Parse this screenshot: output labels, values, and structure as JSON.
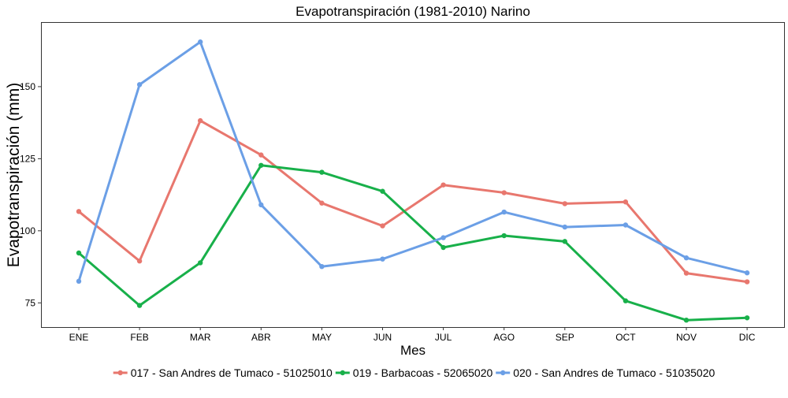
{
  "chart_data": {
    "type": "line",
    "title": "Evapotranspiración (1981-2010)  Narino",
    "xlabel": "Mes",
    "ylabel": "Evapotranspiración  (mm)",
    "categories": [
      "ENE",
      "FEB",
      "MAR",
      "ABR",
      "MAY",
      "JUN",
      "JUL",
      "AGO",
      "SEP",
      "OCT",
      "NOV",
      "DIC"
    ],
    "yticks": [
      75,
      100,
      125,
      150
    ],
    "ylim": [
      66.6,
      172.4
    ],
    "grid": false,
    "legend_position": "bottom",
    "series": [
      {
        "name": "017 - San Andres de Tumaco - 51025010",
        "color": "#E8776E",
        "values": [
          106.7,
          89.5,
          138.2,
          126.3,
          109.6,
          101.7,
          115.9,
          113.2,
          109.4,
          110.0,
          85.3,
          82.3
        ]
      },
      {
        "name": "019 - Barbacoas - 52065020",
        "color": "#18B04A",
        "values": [
          92.3,
          74.1,
          88.9,
          122.7,
          120.3,
          113.7,
          94.2,
          98.3,
          96.3,
          75.7,
          69.0,
          69.8
        ]
      },
      {
        "name": "020 - San Andres de Tumaco - 51035020",
        "color": "#6B9FE6",
        "values": [
          82.5,
          150.7,
          165.5,
          109.0,
          87.6,
          90.2,
          97.6,
          106.5,
          101.3,
          102.0,
          90.6,
          85.4
        ]
      }
    ]
  }
}
